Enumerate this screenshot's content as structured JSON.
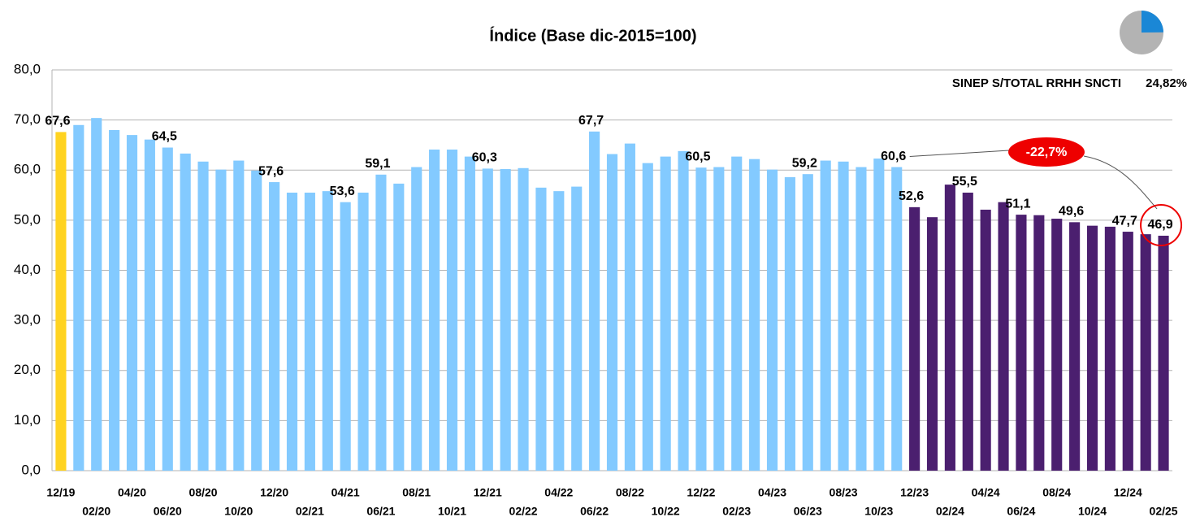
{
  "chart_data": {
    "type": "bar",
    "title": "Índice (Base dic-2015=100)",
    "categories": [
      "12/19",
      null,
      "02/20",
      null,
      "04/20",
      null,
      "06/20",
      null,
      "08/20",
      null,
      "10/20",
      null,
      "12/20",
      null,
      "02/21",
      null,
      "04/21",
      null,
      "06/21",
      null,
      "08/21",
      null,
      "10/21",
      null,
      "12/21",
      null,
      "02/22",
      null,
      "04/22",
      null,
      "06/22",
      null,
      "08/22",
      null,
      "10/22",
      null,
      "12/22",
      null,
      "02/23",
      null,
      "04/23",
      null,
      "06/23",
      null,
      "08/23",
      null,
      "10/23",
      null,
      "12/23",
      null,
      "02/24",
      null,
      "04/24",
      null,
      "06/24",
      null,
      "08/24",
      null,
      "10/24",
      null,
      "12/24",
      null,
      "02/25"
    ],
    "values": [
      67.6,
      69.0,
      70.4,
      68.0,
      67.0,
      66.1,
      64.5,
      63.3,
      61.7,
      60.1,
      61.9,
      59.9,
      57.6,
      55.5,
      55.5,
      55.8,
      53.6,
      55.5,
      59.1,
      57.3,
      60.6,
      64.1,
      64.1,
      62.7,
      60.3,
      60.2,
      60.4,
      56.5,
      55.8,
      56.7,
      67.7,
      63.2,
      65.3,
      61.4,
      62.7,
      63.8,
      60.5,
      60.6,
      62.7,
      62.2,
      60.1,
      58.6,
      59.2,
      61.9,
      61.7,
      60.6,
      62.3,
      60.6,
      52.6,
      50.6,
      57.1,
      55.5,
      52.1,
      53.6,
      51.1,
      51.0,
      50.3,
      49.6,
      48.9,
      48.7,
      47.7,
      47.2,
      46.9
    ],
    "value_labels": [
      "67,6",
      null,
      null,
      null,
      null,
      null,
      "64,5",
      null,
      null,
      null,
      null,
      null,
      "57,6",
      null,
      null,
      null,
      "53,6",
      null,
      "59,1",
      null,
      null,
      null,
      null,
      null,
      "60,3",
      null,
      null,
      null,
      null,
      null,
      "67,7",
      null,
      null,
      null,
      null,
      null,
      "60,5",
      null,
      null,
      null,
      null,
      null,
      "59,2",
      null,
      null,
      null,
      null,
      "60,6",
      "52,6",
      null,
      null,
      "55,5",
      null,
      null,
      "51,1",
      null,
      null,
      "49,6",
      null,
      null,
      "47,7",
      null,
      "46,9"
    ],
    "colors": [
      "#ffd320",
      "#83caff",
      "#83caff",
      "#83caff",
      "#83caff",
      "#83caff",
      "#83caff",
      "#83caff",
      "#83caff",
      "#83caff",
      "#83caff",
      "#83caff",
      "#83caff",
      "#83caff",
      "#83caff",
      "#83caff",
      "#83caff",
      "#83caff",
      "#83caff",
      "#83caff",
      "#83caff",
      "#83caff",
      "#83caff",
      "#83caff",
      "#83caff",
      "#83caff",
      "#83caff",
      "#83caff",
      "#83caff",
      "#83caff",
      "#83caff",
      "#83caff",
      "#83caff",
      "#83caff",
      "#83caff",
      "#83caff",
      "#83caff",
      "#83caff",
      "#83caff",
      "#83caff",
      "#83caff",
      "#83caff",
      "#83caff",
      "#83caff",
      "#83caff",
      "#83caff",
      "#83caff",
      "#83caff",
      "#4b1f6f",
      "#4b1f6f",
      "#4b1f6f",
      "#4b1f6f",
      "#4b1f6f",
      "#4b1f6f",
      "#4b1f6f",
      "#4b1f6f",
      "#4b1f6f",
      "#4b1f6f",
      "#4b1f6f",
      "#4b1f6f",
      "#4b1f6f",
      "#4b1f6f",
      "#4b1f6f"
    ],
    "ylim": [
      0,
      80
    ],
    "yticks": [
      {
        "value": 0,
        "label": "0,0"
      },
      {
        "value": 10,
        "label": "10,0"
      },
      {
        "value": 20,
        "label": "20,0"
      },
      {
        "value": 30,
        "label": "30,0"
      },
      {
        "value": 40,
        "label": "40,0"
      },
      {
        "value": 50,
        "label": "50,0"
      },
      {
        "value": 60,
        "label": "60,0"
      },
      {
        "value": 70,
        "label": "70,0"
      },
      {
        "value": 80,
        "label": "80,0"
      }
    ],
    "grid": true,
    "change_annotation": "-22,7%",
    "share": {
      "label": "SINEP S/TOTAL RRHH SNCTI",
      "value": 24.82,
      "value_label": "24,82%"
    }
  }
}
